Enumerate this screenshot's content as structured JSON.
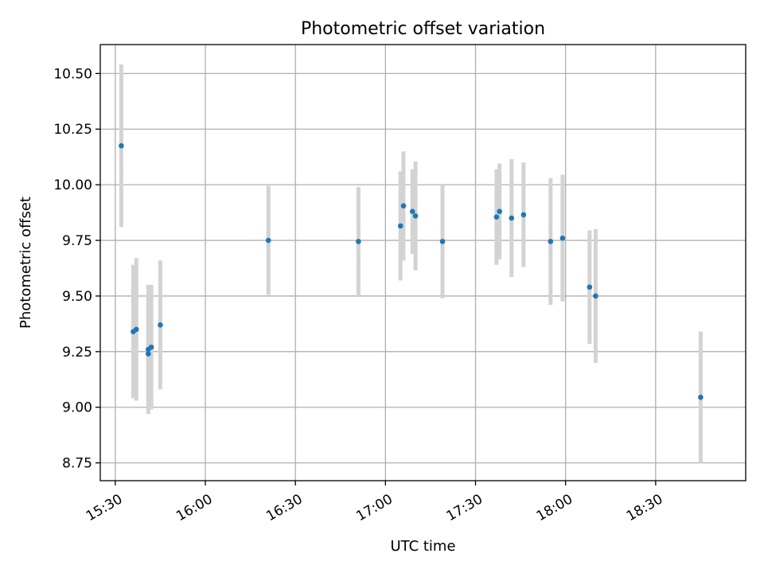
{
  "chart_data": {
    "type": "scatter",
    "title": "Photometric offset variation",
    "xlabel": "UTC time",
    "ylabel": "Photometric offset",
    "xlim": [
      "15:25",
      "19:00"
    ],
    "ylim": [
      8.67,
      10.63
    ],
    "x_ticks": [
      "15:30",
      "16:00",
      "16:30",
      "17:00",
      "17:30",
      "18:00",
      "18:30"
    ],
    "y_ticks": [
      "8.75",
      "9.00",
      "9.25",
      "9.50",
      "9.75",
      "10.00",
      "10.25",
      "10.50"
    ],
    "grid": true,
    "colors": {
      "points": "#1f77b4",
      "errorbars": "#d3d3d3",
      "grid": "#b0b0b0"
    },
    "points": [
      {
        "x": "15:32",
        "y": 10.175,
        "err": 0.365
      },
      {
        "x": "15:36",
        "y": 9.34,
        "err": 0.3
      },
      {
        "x": "15:37",
        "y": 9.35,
        "err": 0.32
      },
      {
        "x": "15:41",
        "y": 9.24,
        "err": 0.27
      },
      {
        "x": "15:41",
        "y": 9.26,
        "err": 0.29
      },
      {
        "x": "15:42",
        "y": 9.27,
        "err": 0.28
      },
      {
        "x": "15:45",
        "y": 9.37,
        "err": 0.29
      },
      {
        "x": "16:21",
        "y": 9.75,
        "err": 0.245
      },
      {
        "x": "16:51",
        "y": 9.745,
        "err": 0.245
      },
      {
        "x": "17:05",
        "y": 9.815,
        "err": 0.245
      },
      {
        "x": "17:06",
        "y": 9.905,
        "err": 0.245
      },
      {
        "x": "17:09",
        "y": 9.88,
        "err": 0.19
      },
      {
        "x": "17:10",
        "y": 9.86,
        "err": 0.245
      },
      {
        "x": "17:19",
        "y": 9.745,
        "err": 0.255
      },
      {
        "x": "17:37",
        "y": 9.855,
        "err": 0.215
      },
      {
        "x": "17:38",
        "y": 9.88,
        "err": 0.215
      },
      {
        "x": "17:42",
        "y": 9.85,
        "err": 0.265
      },
      {
        "x": "17:46",
        "y": 9.865,
        "err": 0.235
      },
      {
        "x": "17:55",
        "y": 9.745,
        "err": 0.285
      },
      {
        "x": "17:59",
        "y": 9.76,
        "err": 0.285
      },
      {
        "x": "18:08",
        "y": 9.54,
        "err": 0.255
      },
      {
        "x": "18:10",
        "y": 9.5,
        "err": 0.3
      },
      {
        "x": "18:45",
        "y": 9.045,
        "err": 0.295
      }
    ]
  }
}
